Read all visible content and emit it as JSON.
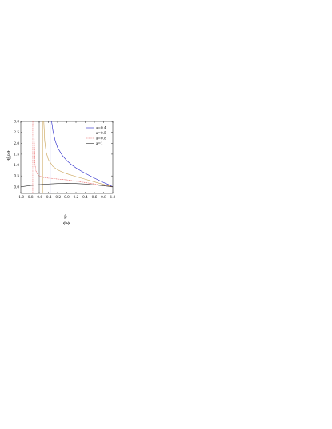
{
  "chart_data": {
    "type": "line",
    "caption": "(b)",
    "xlabel": "β",
    "ylabel": "dβ/dt",
    "xlim": [
      -1.0,
      1.0
    ],
    "ylim": [
      -0.3,
      3.0
    ],
    "xticks": [
      -1.0,
      -0.8,
      -0.6,
      -0.4,
      -0.2,
      0.0,
      0.2,
      0.4,
      0.6,
      0.8,
      1.0
    ],
    "xtick_labels": [
      "-1.0",
      "-0.8",
      "-0.6",
      "-0.4",
      "-0.2",
      "0.0",
      "0.2",
      "0.4",
      "0.6",
      "0.8",
      "1.0"
    ],
    "yticks": [
      0.0,
      0.5,
      1.0,
      1.5,
      2.0,
      2.5,
      3.0
    ],
    "ytick_labels": [
      "0.0",
      "0.5",
      "1.0",
      "1.5",
      "2.0",
      "2.5",
      "3.0"
    ],
    "grid": false,
    "legend_position": "top-right",
    "series": [
      {
        "name": "a=0.4",
        "color": "#2020c8",
        "dash": "solid",
        "x": [
          -0.33,
          -0.3,
          -0.25,
          -0.2,
          -0.1,
          0.0,
          0.1,
          0.2,
          0.3,
          0.4,
          0.5,
          0.6,
          0.7,
          0.8,
          0.9,
          1.0
        ],
        "y": [
          3.0,
          2.55,
          2.1,
          1.8,
          1.45,
          1.2,
          1.02,
          0.87,
          0.74,
          0.62,
          0.51,
          0.4,
          0.3,
          0.2,
          0.11,
          0.0
        ],
        "asymptote": -0.36
      },
      {
        "name": "a=0.5",
        "color": "#c8a050",
        "dash": "solid",
        "x": [
          -0.5,
          -0.48,
          -0.45,
          -0.4,
          -0.3,
          -0.2,
          -0.1,
          0.0,
          0.2,
          0.4,
          0.6,
          0.8,
          1.0
        ],
        "y": [
          3.0,
          2.1,
          1.6,
          1.25,
          0.93,
          0.78,
          0.68,
          0.6,
          0.47,
          0.35,
          0.23,
          0.11,
          0.0
        ],
        "asymptote": -0.52
      },
      {
        "name": "a=0.8",
        "color": "#e03030",
        "dash": "dotted",
        "x": [
          -0.72,
          -0.71,
          -0.7,
          -0.69,
          -0.67,
          -0.64,
          -0.6,
          -0.5,
          -0.4,
          -0.2,
          0.0,
          0.2,
          0.4,
          0.6,
          0.8,
          1.0
        ],
        "y": [
          3.0,
          2.3,
          1.6,
          1.0,
          0.72,
          0.58,
          0.5,
          0.43,
          0.4,
          0.36,
          0.32,
          0.26,
          0.2,
          0.13,
          0.06,
          0.0
        ],
        "asymptote": -0.74
      },
      {
        "name": "a=1",
        "color": "#303030",
        "dash": "solid",
        "x": [
          -1.0,
          -0.8,
          -0.6,
          -0.4,
          -0.2,
          0.0,
          0.2,
          0.4,
          0.6,
          0.8,
          1.0
        ],
        "y": [
          0.0,
          0.06,
          0.1,
          0.13,
          0.15,
          0.16,
          0.15,
          0.13,
          0.09,
          0.05,
          0.0
        ],
        "asymptote": -0.6
      }
    ]
  }
}
